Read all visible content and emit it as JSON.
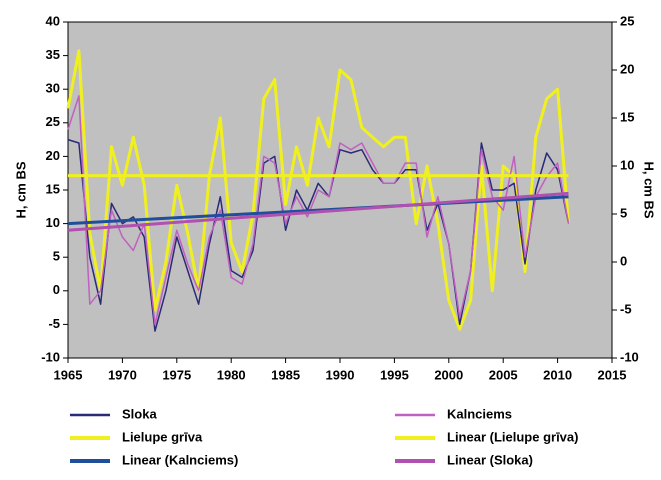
{
  "chart_data": {
    "type": "line",
    "ylabel": "H, cm BS",
    "y2label": "H, cm BS",
    "x": [
      1965,
      1966,
      1967,
      1968,
      1969,
      1970,
      1971,
      1972,
      1973,
      1974,
      1975,
      1976,
      1977,
      1978,
      1979,
      1980,
      1981,
      1982,
      1983,
      1984,
      1985,
      1986,
      1987,
      1988,
      1989,
      1990,
      1991,
      1992,
      1993,
      1994,
      1995,
      1996,
      1997,
      1998,
      1999,
      2000,
      2001,
      2002,
      2003,
      2004,
      2005,
      2006,
      2007,
      2008,
      2009,
      2010,
      2011
    ],
    "xlim": [
      1965,
      2015
    ],
    "xticks": [
      1965,
      1970,
      1975,
      1980,
      1985,
      1990,
      1995,
      2000,
      2005,
      2010,
      2015
    ],
    "ylim": [
      -10,
      40
    ],
    "yticks": [
      -10,
      -5,
      0,
      5,
      10,
      15,
      20,
      25,
      30,
      35,
      40
    ],
    "y2lim": [
      -10,
      25
    ],
    "y2ticks": [
      -10,
      -5,
      0,
      5,
      10,
      15,
      20,
      25
    ],
    "background": "#c0c0c0",
    "legend": "bottom",
    "series": [
      {
        "name": "Sloka",
        "color": "#2a2a78",
        "width": 1.5,
        "values": [
          22.5,
          22,
          5,
          -2,
          13,
          10,
          11,
          8,
          -6,
          0,
          8,
          3,
          -2,
          7,
          14,
          3,
          2,
          6,
          19,
          20,
          9,
          15,
          12,
          16,
          14,
          21,
          20.5,
          21,
          18,
          16,
          16,
          18,
          18,
          9,
          13,
          7,
          -5,
          3,
          22,
          15,
          15,
          16,
          4,
          15,
          20.5,
          18,
          10
        ]
      },
      {
        "name": "Kalnciems",
        "color": "#c060c0",
        "width": 1.5,
        "values": [
          24,
          29,
          -2,
          0,
          12,
          8,
          6,
          10,
          -5,
          2,
          9,
          4,
          0,
          8,
          12,
          2,
          1,
          7,
          20,
          19,
          10,
          14,
          11,
          15,
          14,
          22,
          21,
          22,
          19,
          16,
          16,
          19,
          19,
          8,
          14,
          7,
          -4,
          3,
          21,
          14,
          12,
          20,
          5,
          14,
          17,
          19,
          10
        ]
      },
      {
        "name": "Lielupe grīva",
        "color": "#f0f020",
        "width": 3,
        "axis": "y2",
        "values": [
          16,
          22,
          3,
          -3,
          12,
          8,
          13,
          8,
          -5,
          0,
          8,
          3,
          -3,
          9,
          15,
          2,
          -1,
          5,
          17,
          19,
          6,
          12,
          8,
          15,
          12,
          20,
          19,
          14,
          13,
          12,
          13,
          13,
          4,
          10,
          4,
          -4,
          -7,
          -4,
          10,
          -3,
          10,
          9,
          -1,
          13,
          17,
          18,
          4
        ]
      },
      {
        "name": "Linear (Lielupe grīva)",
        "color": "#f0f020",
        "width": 3,
        "axis": "y2",
        "x": [
          1965,
          2011
        ],
        "values": [
          9,
          9
        ]
      },
      {
        "name": "Linear (Kalnciems)",
        "color": "#1f4e9a",
        "width": 3,
        "x": [
          1965,
          2011
        ],
        "values": [
          10,
          14
        ]
      },
      {
        "name": "Linear (Sloka)",
        "color": "#b050b0",
        "width": 3,
        "x": [
          1965,
          2011
        ],
        "values": [
          9,
          14.5
        ]
      }
    ]
  }
}
